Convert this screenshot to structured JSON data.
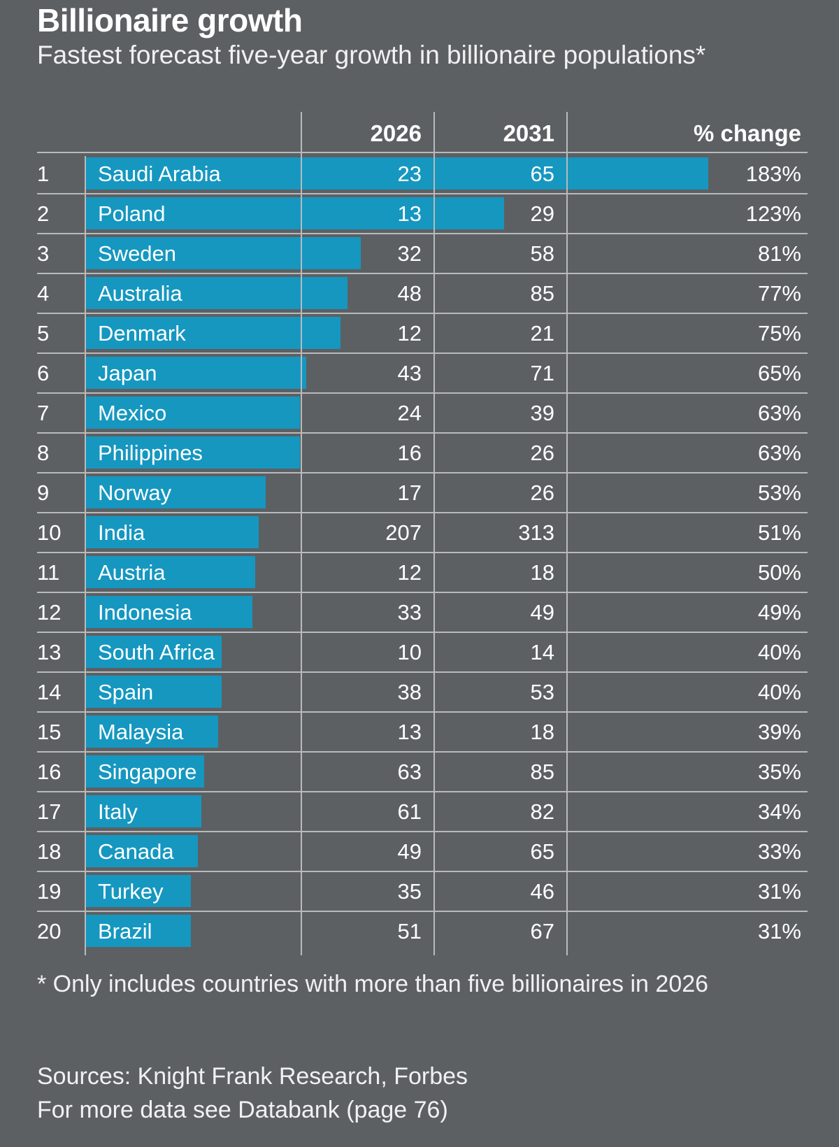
{
  "header": {
    "title": "Billionaire growth",
    "subtitle": "Fastest forecast five-year growth in billionaire populations*"
  },
  "chart_data": {
    "type": "table",
    "columns": [
      "",
      "",
      "2026",
      "2031",
      "% change"
    ],
    "bar_color": "#1597c0",
    "bar_max": 183,
    "rows": [
      {
        "rank": "1",
        "country": "Saudi Arabia",
        "y2026": "23",
        "y2031": "65",
        "change": "183%",
        "change_value": 183
      },
      {
        "rank": "2",
        "country": "Poland",
        "y2026": "13",
        "y2031": "29",
        "change": "123%",
        "change_value": 123
      },
      {
        "rank": "3",
        "country": "Sweden",
        "y2026": "32",
        "y2031": "58",
        "change": "81%",
        "change_value": 81
      },
      {
        "rank": "4",
        "country": "Australia",
        "y2026": "48",
        "y2031": "85",
        "change": "77%",
        "change_value": 77
      },
      {
        "rank": "5",
        "country": "Denmark",
        "y2026": "12",
        "y2031": "21",
        "change": "75%",
        "change_value": 75
      },
      {
        "rank": "6",
        "country": "Japan",
        "y2026": "43",
        "y2031": "71",
        "change": "65%",
        "change_value": 65
      },
      {
        "rank": "7",
        "country": "Mexico",
        "y2026": "24",
        "y2031": "39",
        "change": "63%",
        "change_value": 63
      },
      {
        "rank": "8",
        "country": "Philippines",
        "y2026": "16",
        "y2031": "26",
        "change": "63%",
        "change_value": 63
      },
      {
        "rank": "9",
        "country": "Norway",
        "y2026": "17",
        "y2031": "26",
        "change": "53%",
        "change_value": 53
      },
      {
        "rank": "10",
        "country": "India",
        "y2026": "207",
        "y2031": "313",
        "change": "51%",
        "change_value": 51
      },
      {
        "rank": "11",
        "country": "Austria",
        "y2026": "12",
        "y2031": "18",
        "change": "50%",
        "change_value": 50
      },
      {
        "rank": "12",
        "country": "Indonesia",
        "y2026": "33",
        "y2031": "49",
        "change": "49%",
        "change_value": 49
      },
      {
        "rank": "13",
        "country": "South Africa",
        "y2026": "10",
        "y2031": "14",
        "change": "40%",
        "change_value": 40
      },
      {
        "rank": "14",
        "country": "Spain",
        "y2026": "38",
        "y2031": "53",
        "change": "40%",
        "change_value": 40
      },
      {
        "rank": "15",
        "country": "Malaysia",
        "y2026": "13",
        "y2031": "18",
        "change": "39%",
        "change_value": 39
      },
      {
        "rank": "16",
        "country": "Singapore",
        "y2026": "63",
        "y2031": "85",
        "change": "35%",
        "change_value": 35
      },
      {
        "rank": "17",
        "country": "Italy",
        "y2026": "61",
        "y2031": "82",
        "change": "34%",
        "change_value": 34
      },
      {
        "rank": "18",
        "country": "Canada",
        "y2026": "49",
        "y2031": "65",
        "change": "33%",
        "change_value": 33
      },
      {
        "rank": "19",
        "country": "Turkey",
        "y2026": "35",
        "y2031": "46",
        "change": "31%",
        "change_value": 31
      },
      {
        "rank": "20",
        "country": "Brazil",
        "y2026": "51",
        "y2031": "67",
        "change": "31%",
        "change_value": 31
      }
    ]
  },
  "footer": {
    "note": "* Only includes countries with more than five billionaires in 2026",
    "sources": "Sources: Knight Frank Research, Forbes",
    "databank": "For more data see Databank (page 76)"
  }
}
